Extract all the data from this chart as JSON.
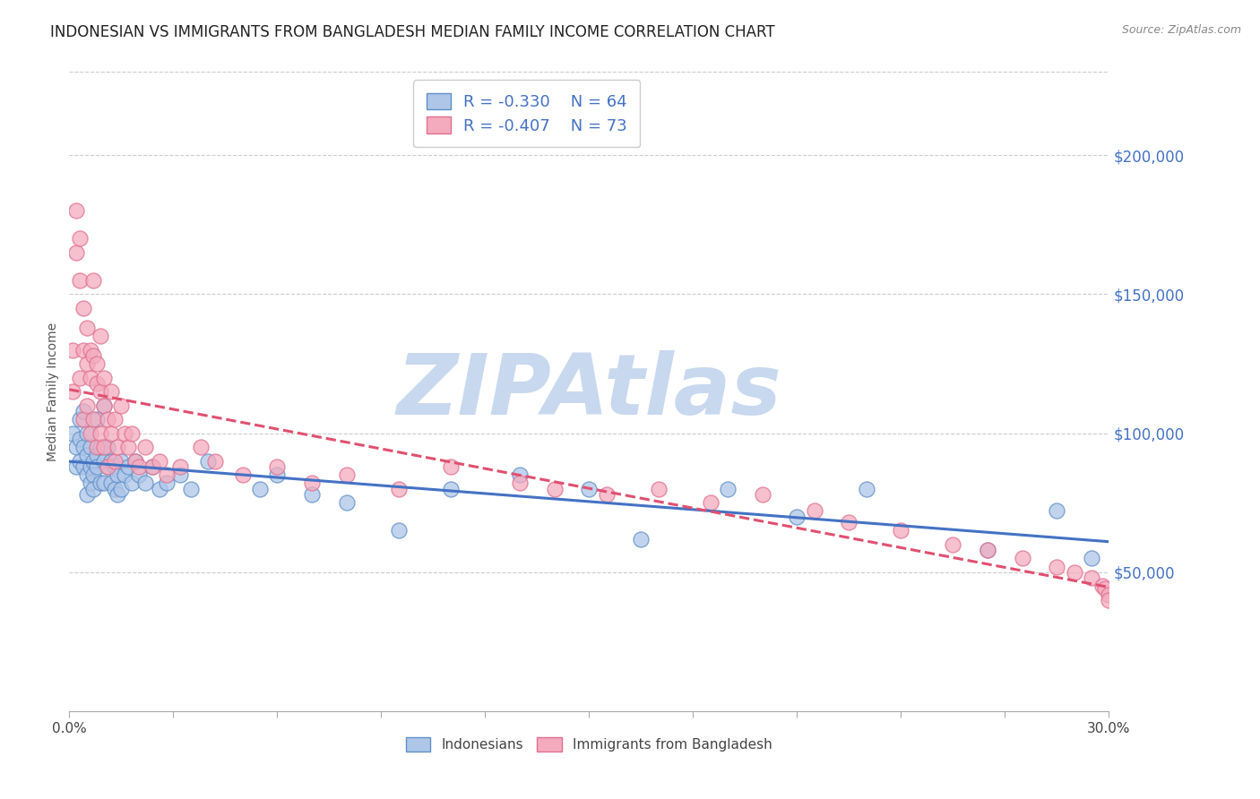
{
  "title": "INDONESIAN VS IMMIGRANTS FROM BANGLADESH MEDIAN FAMILY INCOME CORRELATION CHART",
  "source": "Source: ZipAtlas.com",
  "ylabel": "Median Family Income",
  "right_yticks": [
    50000,
    100000,
    150000,
    200000
  ],
  "right_yticklabels": [
    "$50,000",
    "$100,000",
    "$150,000",
    "$200,000"
  ],
  "xmin": 0.0,
  "xmax": 0.3,
  "ymin": 0,
  "ymax": 230000,
  "blue_R": -0.33,
  "blue_N": 64,
  "pink_R": -0.407,
  "pink_N": 73,
  "blue_fill_color": "#aec6e8",
  "pink_fill_color": "#f4abbe",
  "blue_edge_color": "#6090c8",
  "pink_edge_color": "#e07090",
  "blue_line_color": "#4472c4",
  "pink_line_color": "#e05070",
  "legend_label_blue": "Indonesians",
  "legend_label_pink": "Immigrants from Bangladesh",
  "watermark": "ZIPAtlas",
  "watermark_color": "#c8d8ee",
  "title_fontsize": 12,
  "axis_label_fontsize": 10,
  "tick_color": "#4472c4",
  "background_color": "#ffffff",
  "grid_color": "#cccccc",
  "blue_scatter_x": [
    0.001,
    0.002,
    0.002,
    0.003,
    0.003,
    0.003,
    0.004,
    0.004,
    0.004,
    0.005,
    0.005,
    0.005,
    0.005,
    0.006,
    0.006,
    0.006,
    0.007,
    0.007,
    0.007,
    0.008,
    0.008,
    0.008,
    0.009,
    0.009,
    0.01,
    0.01,
    0.01,
    0.011,
    0.011,
    0.012,
    0.012,
    0.013,
    0.013,
    0.014,
    0.014,
    0.015,
    0.015,
    0.016,
    0.017,
    0.018,
    0.019,
    0.02,
    0.022,
    0.024,
    0.026,
    0.028,
    0.032,
    0.035,
    0.04,
    0.055,
    0.06,
    0.07,
    0.08,
    0.095,
    0.11,
    0.13,
    0.15,
    0.165,
    0.19,
    0.21,
    0.23,
    0.265,
    0.285,
    0.295
  ],
  "blue_scatter_y": [
    100000,
    95000,
    88000,
    105000,
    98000,
    90000,
    108000,
    95000,
    88000,
    100000,
    92000,
    85000,
    78000,
    95000,
    88000,
    82000,
    90000,
    85000,
    80000,
    105000,
    92000,
    88000,
    95000,
    82000,
    110000,
    90000,
    82000,
    95000,
    88000,
    90000,
    82000,
    88000,
    80000,
    85000,
    78000,
    90000,
    80000,
    85000,
    88000,
    82000,
    90000,
    85000,
    82000,
    88000,
    80000,
    82000,
    85000,
    80000,
    90000,
    80000,
    85000,
    78000,
    75000,
    65000,
    80000,
    85000,
    80000,
    62000,
    80000,
    70000,
    80000,
    58000,
    72000,
    55000
  ],
  "pink_scatter_x": [
    0.001,
    0.001,
    0.002,
    0.002,
    0.003,
    0.003,
    0.003,
    0.004,
    0.004,
    0.004,
    0.005,
    0.005,
    0.005,
    0.006,
    0.006,
    0.006,
    0.007,
    0.007,
    0.007,
    0.008,
    0.008,
    0.008,
    0.009,
    0.009,
    0.009,
    0.01,
    0.01,
    0.01,
    0.011,
    0.011,
    0.012,
    0.012,
    0.013,
    0.013,
    0.014,
    0.015,
    0.016,
    0.017,
    0.018,
    0.019,
    0.02,
    0.022,
    0.024,
    0.026,
    0.028,
    0.032,
    0.038,
    0.042,
    0.05,
    0.06,
    0.07,
    0.08,
    0.095,
    0.11,
    0.13,
    0.14,
    0.155,
    0.17,
    0.185,
    0.2,
    0.215,
    0.225,
    0.24,
    0.255,
    0.265,
    0.275,
    0.285,
    0.29,
    0.295,
    0.298,
    0.299,
    0.3,
    0.3
  ],
  "pink_scatter_y": [
    115000,
    130000,
    180000,
    165000,
    155000,
    170000,
    120000,
    145000,
    130000,
    105000,
    125000,
    138000,
    110000,
    130000,
    120000,
    100000,
    155000,
    128000,
    105000,
    125000,
    118000,
    95000,
    135000,
    115000,
    100000,
    110000,
    120000,
    95000,
    105000,
    88000,
    100000,
    115000,
    105000,
    90000,
    95000,
    110000,
    100000,
    95000,
    100000,
    90000,
    88000,
    95000,
    88000,
    90000,
    85000,
    88000,
    95000,
    90000,
    85000,
    88000,
    82000,
    85000,
    80000,
    88000,
    82000,
    80000,
    78000,
    80000,
    75000,
    78000,
    72000,
    68000,
    65000,
    60000,
    58000,
    55000,
    52000,
    50000,
    48000,
    45000,
    44000,
    42000,
    40000
  ]
}
